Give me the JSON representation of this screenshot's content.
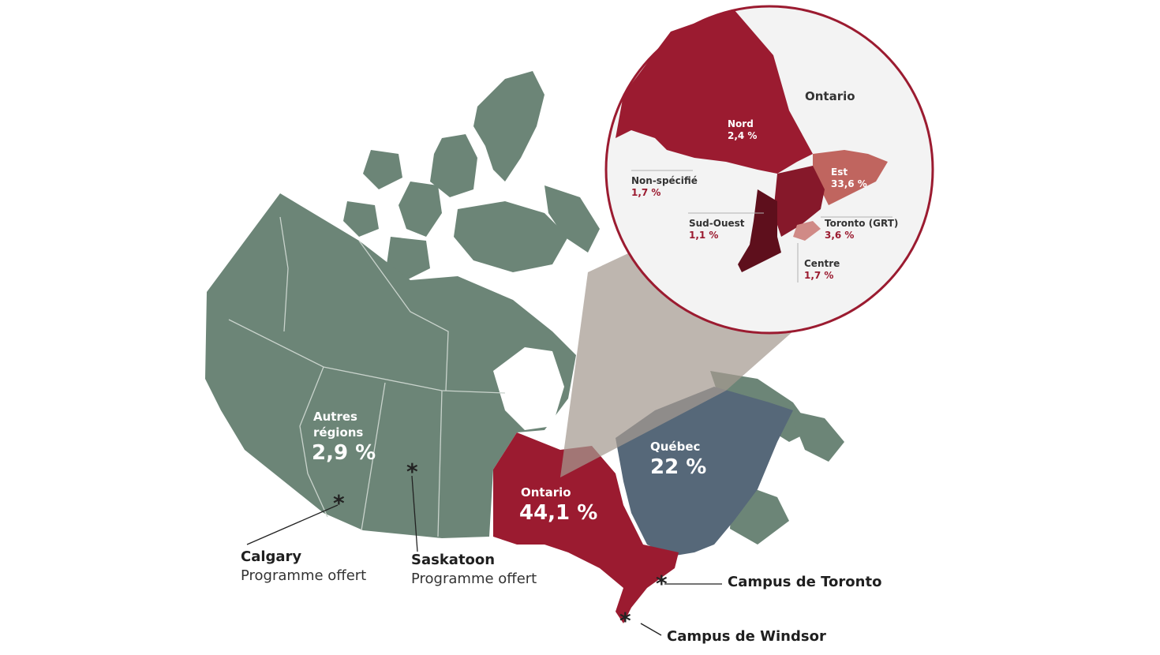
{
  "colors": {
    "other_regions": "#6c8577",
    "ontario": "#9b1b30",
    "quebec": "#566879",
    "inset_bg": "#f3f3f3",
    "inset_ring": "#9b1b30",
    "est": "#c0655f",
    "toronto": "#d08a86",
    "sud_ouest": "#5e0f1c",
    "centre": "#86182a"
  },
  "regions": {
    "other": {
      "name": "Autres\nrégions",
      "line1": "Autres",
      "line2": "régions",
      "pct": "2,9 %"
    },
    "ontario": {
      "name": "Ontario",
      "pct": "44,1 %"
    },
    "quebec": {
      "name": "Québec",
      "pct": "22 %"
    }
  },
  "campuses": {
    "calgary": {
      "name": "Calgary",
      "sub": "Programme offert"
    },
    "saskatoon": {
      "name": "Saskatoon",
      "sub": "Programme offert"
    },
    "toronto": {
      "name": "Campus de Toronto"
    },
    "windsor": {
      "name": "Campus de Windsor"
    }
  },
  "star_symbol": "*",
  "inset": {
    "title": "Ontario",
    "nord": {
      "name": "Nord",
      "pct": "2,4 %"
    },
    "est": {
      "name": "Est",
      "pct": "33,6 %"
    },
    "non_specifie": {
      "name": "Non-spécifié",
      "pct": "1,7 %"
    },
    "sud_ouest": {
      "name": "Sud-Ouest",
      "pct": "1,1 %"
    },
    "toronto": {
      "name": "Toronto (GRT)",
      "pct": "3,6 %"
    },
    "centre": {
      "name": "Centre",
      "pct": "1,7 %"
    }
  }
}
